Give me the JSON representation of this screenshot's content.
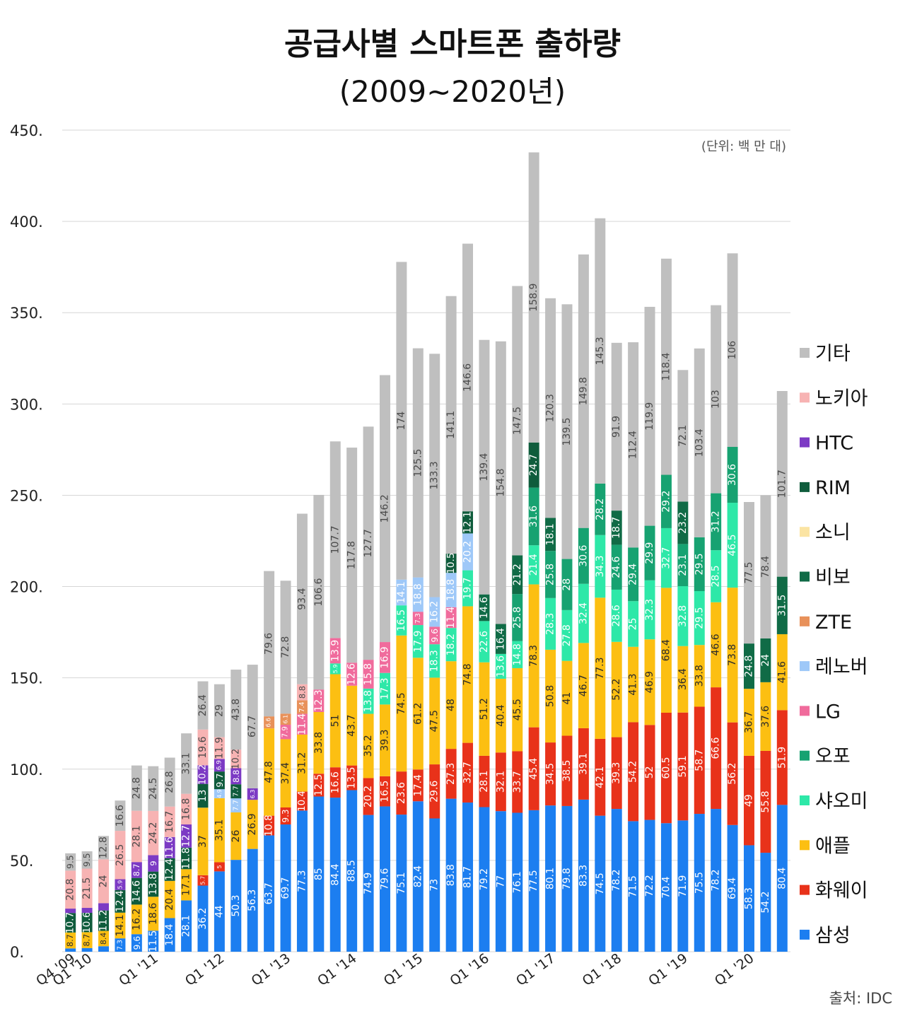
{
  "header": {
    "title_line1": "공급사별 스마트폰 출하량",
    "title_line2": "(2009~2020년)"
  },
  "unit_label": "(단위: 백 만 대)",
  "source_label": "출처: IDC",
  "colors": {
    "삼성": "#1c7ef0",
    "화웨이": "#e8321a",
    "애플": "#fcbf12",
    "샤오미": "#2ee8a8",
    "오포": "#17a271",
    "LG": "#f06b9c",
    "레노버": "#9ec8f8",
    "ZTE": "#e8915a",
    "비보": "#106b46",
    "소니": "#fbe4a3",
    "RIM": "#0f5c3c",
    "HTC": "#7c3ac4",
    "노키아": "#f7b3b3",
    "기타": "#bfbfbf"
  },
  "chart_data": {
    "type": "bar",
    "stacked": true,
    "title": "공급사별 스마트폰 출하량 (2009~2020년)",
    "ylabel": "(단위: 백 만 대)",
    "ylim": [
      0,
      450
    ],
    "yticks": [
      "0.",
      "50.",
      "100.",
      "150.",
      "200.",
      "250.",
      "300.",
      "350.",
      "400.",
      "450."
    ],
    "grid": true,
    "legend_position": "right",
    "categories": [
      "Q4 '09",
      "Q1 '10",
      "Q2 '10",
      "Q3 '10",
      "Q4 '10",
      "Q1 '11",
      "Q2 '11",
      "Q3 '11",
      "Q4 '11",
      "Q1 '12",
      "Q2 '12",
      "Q3 '12",
      "Q4 '12",
      "Q1 '13",
      "Q2 '13",
      "Q3 '13",
      "Q4 '13",
      "Q1 '14",
      "Q2 '14",
      "Q3 '14",
      "Q4 '14",
      "Q1 '15",
      "Q2 '15",
      "Q3 '15",
      "Q4 '15",
      "Q1 '16",
      "Q2 '16",
      "Q3 '16",
      "Q4 '16",
      "Q1 '17",
      "Q2 '17",
      "Q3 '17",
      "Q4 '17",
      "Q1 '18",
      "Q2 '18",
      "Q3 '18",
      "Q4 '18",
      "Q1 '19",
      "Q2 '19",
      "Q3 '19",
      "Q4 '19",
      "Q1 '20",
      "Q2 '20",
      "Q3 '20"
    ],
    "x_tick_labels": [
      "Q4 '09",
      "Q1 '10",
      "Q1 '11",
      "Q1 '12",
      "Q1 '13",
      "Q1 '14",
      "Q1 '15",
      "Q1 '16",
      "Q1 '17",
      "Q1 '18",
      "Q1 '19",
      "Q1 '20"
    ],
    "x_tick_indices": [
      0,
      1,
      5,
      9,
      13,
      17,
      21,
      25,
      29,
      33,
      37,
      41
    ],
    "legend": [
      "기타",
      "노키아",
      "HTC",
      "RIM",
      "소니",
      "비보",
      "ZTE",
      "레노버",
      "LG",
      "오포",
      "샤오미",
      "애플",
      "화웨이",
      "삼성"
    ],
    "series": [
      {
        "name": "삼성",
        "values": [
          1.8,
          2,
          3,
          7.3,
          9.6,
          11.5,
          18.4,
          28.1,
          36.2,
          44,
          50.3,
          56.3,
          63.7,
          69.7,
          77.3,
          85,
          84.4,
          88.5,
          74.9,
          79.6,
          75.1,
          82.4,
          73,
          83.8,
          81.7,
          79.2,
          77,
          76.1,
          77.5,
          80.1,
          79.8,
          83.3,
          74.5,
          78.2,
          71.5,
          72.2,
          70.4,
          71.9,
          75.5,
          78.2,
          69.4,
          58.3,
          54.2,
          80.4
        ]
      },
      {
        "name": "화웨이",
        "values": [
          null,
          null,
          null,
          null,
          null,
          null,
          null,
          null,
          5.7,
          5,
          null,
          null,
          10.8,
          9.3,
          10.4,
          12.5,
          16.6,
          13.5,
          20.2,
          16.5,
          23.6,
          17.4,
          29.6,
          27.3,
          32.7,
          28.1,
          32.1,
          33.7,
          45.4,
          34.5,
          38.5,
          39.1,
          42.1,
          39.3,
          54.2,
          52,
          60.5,
          59.1,
          58.7,
          66.6,
          56.2,
          49,
          55.8,
          51.9
        ]
      },
      {
        "name": "애플",
        "values": [
          8.7,
          8.7,
          8.4,
          14.1,
          16.2,
          18.6,
          20.4,
          17.1,
          37,
          35.1,
          26,
          26.9,
          47.8,
          37.4,
          31.2,
          33.8,
          51,
          43.7,
          35.2,
          39.3,
          74.5,
          61.2,
          47.5,
          48,
          74.8,
          51.2,
          40.4,
          45.5,
          78.3,
          50.8,
          41,
          46.7,
          77.3,
          52.2,
          41.3,
          46.9,
          68.4,
          36.4,
          33.8,
          46.6,
          73.8,
          36.7,
          37.6,
          41.6
        ]
      },
      {
        "name": "샤오미",
        "values": [
          null,
          null,
          null,
          null,
          null,
          null,
          null,
          null,
          null,
          null,
          null,
          null,
          null,
          null,
          null,
          null,
          5.9,
          null,
          13.8,
          17.3,
          16.5,
          17.9,
          18.3,
          18.2,
          19.7,
          22.6,
          13.6,
          14.8,
          21.4,
          28.3,
          27.8,
          32.4,
          34.3,
          28.6,
          25,
          32.3,
          32.7,
          32.8,
          29.5,
          28.5,
          46.5,
          null,
          null,
          null
        ]
      },
      {
        "name": "오포",
        "values": [
          null,
          null,
          null,
          null,
          null,
          null,
          null,
          null,
          null,
          null,
          null,
          null,
          null,
          null,
          null,
          null,
          null,
          null,
          null,
          null,
          null,
          null,
          null,
          null,
          null,
          null,
          null,
          25.8,
          31.6,
          25.8,
          28,
          30.6,
          28.2,
          24.6,
          29.4,
          29.9,
          29.2,
          23.1,
          29.5,
          31.2,
          30.6,
          null,
          null,
          null
        ]
      },
      {
        "name": "LG",
        "values": [
          null,
          null,
          null,
          null,
          null,
          null,
          null,
          null,
          null,
          null,
          null,
          null,
          null,
          7.9,
          11.4,
          12.3,
          13.9,
          12.6,
          15.8,
          16.9,
          null,
          7.3,
          9.6,
          11.4,
          null,
          null,
          null,
          null,
          null,
          null,
          null,
          null,
          null,
          null,
          null,
          null,
          null,
          null,
          null,
          null,
          null,
          null,
          null,
          null
        ]
      },
      {
        "name": "레노버",
        "values": [
          null,
          null,
          null,
          null,
          null,
          null,
          null,
          null,
          null,
          4.9,
          7.7,
          null,
          null,
          null,
          null,
          null,
          null,
          null,
          null,
          null,
          14.1,
          18.8,
          16.2,
          18.8,
          20.2,
          null,
          null,
          null,
          null,
          null,
          null,
          null,
          null,
          null,
          null,
          null,
          null,
          null,
          null,
          null,
          null,
          null,
          null,
          null
        ]
      },
      {
        "name": "ZTE",
        "values": [
          null,
          null,
          null,
          null,
          null,
          null,
          null,
          null,
          null,
          null,
          null,
          null,
          6.6,
          6.1,
          7.4,
          null,
          null,
          null,
          null,
          null,
          null,
          null,
          null,
          null,
          null,
          null,
          null,
          null,
          null,
          null,
          null,
          null,
          null,
          null,
          null,
          null,
          null,
          null,
          null,
          null,
          null,
          null,
          null,
          null
        ]
      },
      {
        "name": "비보",
        "values": [
          null,
          null,
          null,
          null,
          null,
          null,
          null,
          null,
          null,
          null,
          null,
          null,
          null,
          null,
          null,
          null,
          null,
          null,
          null,
          null,
          null,
          null,
          null,
          null,
          null,
          14.6,
          16.4,
          21.2,
          null,
          18.1,
          null,
          null,
          null,
          18.7,
          null,
          null,
          null,
          23.2,
          null,
          null,
          null,
          24.8,
          24,
          31.5
        ]
      },
      {
        "name": "소니",
        "values": [
          null,
          null,
          null,
          null,
          null,
          null,
          null,
          null,
          null,
          null,
          null,
          null,
          null,
          null,
          null,
          null,
          null,
          null,
          null,
          null,
          null,
          null,
          null,
          null,
          null,
          null,
          null,
          null,
          null,
          null,
          null,
          null,
          null,
          null,
          null,
          null,
          null,
          null,
          null,
          null,
          null,
          null,
          null,
          null
        ]
      },
      {
        "name": "RIM",
        "values": [
          10.7,
          10.6,
          11.2,
          12.4,
          14.6,
          13.8,
          12.4,
          11.8,
          13,
          9.7,
          7.7,
          null,
          null,
          null,
          null,
          null,
          null,
          null,
          null,
          null,
          null,
          null,
          null,
          10.5,
          12.1,
          null,
          null,
          null,
          24.7,
          null,
          null,
          null,
          null,
          null,
          null,
          null,
          null,
          null,
          null,
          null,
          null,
          null,
          null,
          null
        ]
      },
      {
        "name": "HTC",
        "values": [
          2.4,
          2.7,
          4,
          5.9,
          8.7,
          9,
          11.6,
          12.7,
          10.2,
          6.9,
          8.8,
          6.3,
          null,
          null,
          null,
          null,
          null,
          null,
          null,
          null,
          null,
          null,
          null,
          null,
          null,
          null,
          null,
          null,
          null,
          null,
          null,
          null,
          null,
          null,
          null,
          null,
          null,
          null,
          null,
          null,
          null,
          null,
          null,
          null
        ]
      },
      {
        "name": "노키아",
        "values": [
          20.8,
          21.5,
          24,
          26.5,
          28.1,
          24.2,
          16.7,
          16.8,
          19.6,
          11.9,
          10.2,
          null,
          null,
          null,
          8.8,
          null,
          null,
          null,
          null,
          null,
          null,
          null,
          null,
          null,
          null,
          null,
          null,
          null,
          null,
          null,
          null,
          null,
          null,
          null,
          null,
          null,
          null,
          null,
          null,
          null,
          null,
          null,
          null,
          null
        ]
      },
      {
        "name": "기타",
        "values": [
          9.5,
          9.5,
          12.8,
          16.6,
          24.8,
          24.5,
          26.8,
          33.1,
          26.4,
          29,
          43.8,
          67.7,
          79.6,
          72.8,
          93.4,
          106.6,
          107.7,
          117.8,
          127.7,
          146.2,
          174,
          125.5,
          133.3,
          141.1,
          146.6,
          139.4,
          154.8,
          147.5,
          158.9,
          120.3,
          139.5,
          149.8,
          145.3,
          91.9,
          112.4,
          119.9,
          118.4,
          72.1,
          103.4,
          103,
          106,
          77.5,
          78.4,
          101.7
        ]
      }
    ]
  }
}
